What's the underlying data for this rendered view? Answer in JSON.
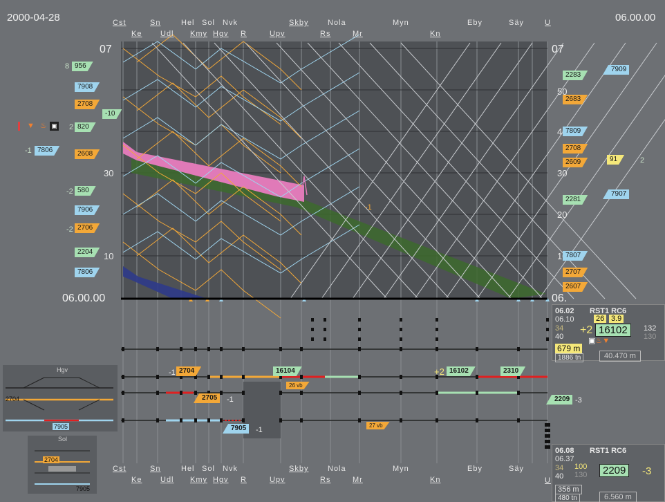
{
  "header": {
    "date": "2000-04-28",
    "time_right": "06.00.00"
  },
  "stations_top_row1": [
    "Cst",
    "Sn",
    "Hel",
    "Sol",
    "Nvk",
    "Skby",
    "Nola",
    "Myn",
    "Eby",
    "Säy",
    "U"
  ],
  "stations_top_row2": [
    "Ke",
    "Udl",
    "Kmy",
    "Hgv",
    "R",
    "Upv",
    "Rs",
    "Mr",
    "Kn"
  ],
  "axis": {
    "hour_top_left": "07",
    "hour_top_right": "07",
    "min_50": "50",
    "min_40": "40",
    "min_30_left": "30",
    "min_30_right": "30",
    "min_20": "20",
    "min_10_left": "10",
    "min_10_right": "10",
    "time_bottom_left": "06.00.00",
    "time_bottom_right": "06."
  },
  "left_tags": [
    {
      "offset": "8",
      "label": "956"
    },
    {
      "offset": "",
      "label": "7908"
    },
    {
      "offset": "",
      "label": "2708"
    },
    {
      "offset": "-10",
      "label": ""
    },
    {
      "offset": "2",
      "label": "820"
    },
    {
      "offset": "-1",
      "label": "7806"
    },
    {
      "offset": "",
      "label": "2608"
    },
    {
      "offset": "-2",
      "label": "580"
    },
    {
      "offset": "",
      "label": "7906"
    },
    {
      "offset": "-2",
      "label": "2706"
    },
    {
      "offset": "",
      "label": "2204"
    },
    {
      "offset": "",
      "label": "7806"
    }
  ],
  "right_tags": [
    {
      "label": "7909"
    },
    {
      "label": "2283"
    },
    {
      "label": "2683"
    },
    {
      "label": "7809"
    },
    {
      "label": "2708"
    },
    {
      "label": "2609"
    },
    {
      "label": "91"
    },
    {
      "label": "7907"
    },
    {
      "label": "2281"
    },
    {
      "label": "7807"
    },
    {
      "label": "2707"
    },
    {
      "label": "2607"
    }
  ],
  "right_extra": {
    "offset_91": "2",
    "offset_left_1": "-1"
  },
  "track_labels": {
    "t2704": "2704",
    "t2704_offset": "-1",
    "t16104": "16104",
    "t2705": "2705",
    "t2705_offset": "-1",
    "t7905": "7905",
    "t7905_offset": "-1",
    "t16102": "16102",
    "t16102_offset": "+2",
    "t2310": "2310",
    "t2209": "2209",
    "t2209_offset": "-3",
    "t26vb": "26 vb",
    "t27vb": "27 vb"
  },
  "info_top": {
    "time1": "06.02",
    "time2": "06.10",
    "train_type": "RST1 RC6",
    "speed_a": "26",
    "speed_b": "3.9",
    "delay": "+2",
    "train_no": "16102",
    "num1": "34",
    "num2": "40",
    "num3": "132",
    "num4": "130",
    "distance": "679 m",
    "length": "1886 tn",
    "km": "40.470 m"
  },
  "info_bottom": {
    "time1": "06.08",
    "time2": "06.37",
    "train_type": "RST1 RC6",
    "num1": "34",
    "num2": "40",
    "speed": "100",
    "speed2": "130",
    "train_no": "2209",
    "delay": "-3",
    "distance": "356 m",
    "length": "480 tn",
    "km": "6.560 m"
  },
  "mini_panels": {
    "hgv_title": "Hgv",
    "hgv_label1": "2704",
    "hgv_label2": "7905",
    "sol_title": "Sol",
    "sol_label1": "2704",
    "sol_label2": "7905"
  },
  "colors": {
    "panel": "#4e5155",
    "background": "#6d7074",
    "blue_train": "#9fd4ee",
    "orange_train": "#f3a838",
    "green_train": "#a7e0b2",
    "pink_band": "#e07ab8",
    "green_band": "#3d6a2e",
    "red_track": "#e02020"
  },
  "icons": [
    "alert-bar-icon",
    "warning-triangle-icon",
    "fire-icon",
    "lock-icon"
  ]
}
